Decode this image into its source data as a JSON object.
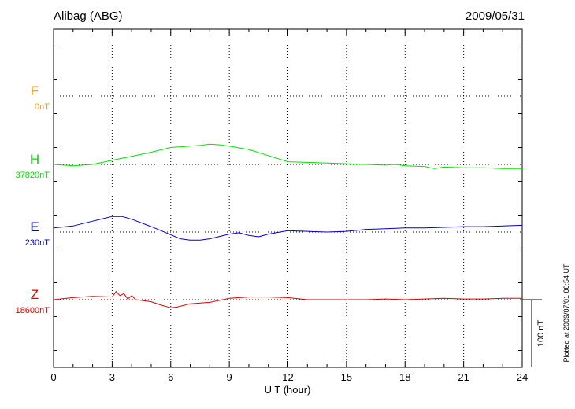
{
  "chart_data": {
    "type": "line",
    "title": "Alibag (ABG)",
    "date": "2009/05/31",
    "xlabel": "U T (hour)",
    "xlim": [
      0,
      24
    ],
    "xticks": [
      "0",
      "3",
      "6",
      "9",
      "12",
      "15",
      "18",
      "21",
      "24"
    ],
    "plotted_note": "Plotted at 2009/07/01 00:54 UT",
    "scale_label": "100 nT",
    "series": [
      {
        "name": "F",
        "baseline_label": "0nT",
        "color": "#f0a000",
        "x": [],
        "y": []
      },
      {
        "name": "H",
        "baseline_label": "37820nT",
        "color": "#00e000",
        "x": [
          0,
          1,
          2,
          3,
          4,
          5,
          6,
          6.5,
          7,
          7.5,
          8,
          8.5,
          9,
          10,
          11,
          12,
          13,
          14,
          15,
          16,
          17,
          17.5,
          18,
          19,
          19.5,
          20,
          21,
          22,
          23,
          24
        ],
        "y": [
          0,
          -2,
          0,
          6,
          12,
          18,
          25,
          26,
          27,
          28,
          30,
          29,
          27,
          22,
          13,
          4,
          3,
          2,
          1,
          0,
          -1,
          0,
          -2,
          -3,
          -6,
          -4,
          -5,
          -5,
          -6,
          -6
        ]
      },
      {
        "name": "E",
        "baseline_label": "230nT",
        "color": "#0000cc",
        "x": [
          0,
          1,
          2,
          3,
          3.5,
          4,
          5,
          6,
          6.5,
          7,
          7.5,
          8,
          9,
          9.5,
          10,
          10.5,
          11,
          12,
          13,
          14,
          15,
          16,
          17,
          18,
          19,
          20,
          21,
          22,
          23,
          24
        ],
        "y": [
          6,
          9,
          16,
          23,
          23,
          19,
          8,
          -4,
          -10,
          -12,
          -12,
          -10,
          -3,
          -1,
          -5,
          -7,
          -3,
          2,
          1,
          0,
          1,
          4,
          5,
          6,
          6,
          7,
          8,
          8,
          9,
          10
        ]
      },
      {
        "name": "Z",
        "baseline_label": "18600nT",
        "color": "#dd0000",
        "x": [
          0,
          1,
          2,
          3,
          3.2,
          3.4,
          3.6,
          3.8,
          4,
          4.2,
          4.5,
          5,
          5.5,
          6,
          6.3,
          7,
          8,
          9,
          10,
          11,
          12,
          13,
          14,
          15,
          16,
          17,
          18,
          19,
          20,
          21,
          22,
          23,
          24
        ],
        "y": [
          0,
          3,
          5,
          4,
          12,
          6,
          9,
          1,
          6,
          0,
          -1,
          -3,
          -8,
          -12,
          -11,
          -6,
          -4,
          2,
          4,
          4,
          3,
          0,
          0,
          0,
          0,
          1,
          0,
          1,
          2,
          1,
          1,
          2,
          2
        ]
      }
    ]
  }
}
